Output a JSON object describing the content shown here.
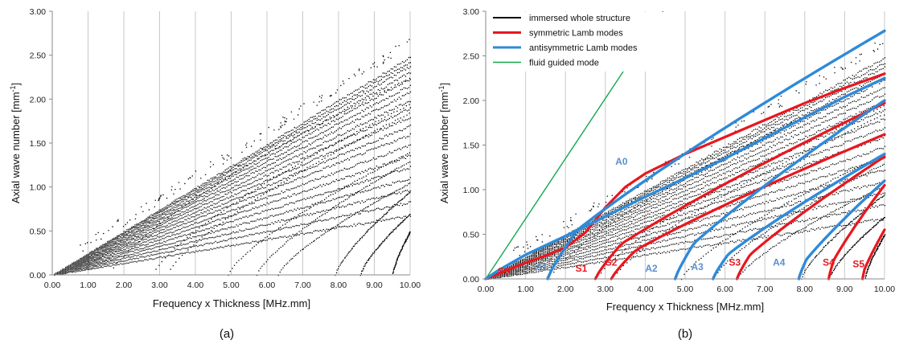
{
  "chart_data": [
    {
      "type": "scatter",
      "caption": "(a)",
      "xlabel": "Frequency x Thickness [MHz.mm]",
      "ylabel_main": "Axial wave number [mm",
      "ylabel_sup": "-1",
      "ylabel_end": "]",
      "xlim": [
        0,
        10
      ],
      "ylim": [
        0,
        3
      ],
      "xticks": [
        "0.00",
        "1.00",
        "2.00",
        "3.00",
        "4.00",
        "5.00",
        "6.00",
        "7.00",
        "8.00",
        "9.00",
        "10.00"
      ],
      "yticks": [
        "0.00",
        "0.50",
        "1.00",
        "1.50",
        "2.00",
        "2.50",
        "3.00"
      ],
      "grid": "vertical",
      "series": [
        {
          "marker_color": "#000000",
          "fan_branches": [
            {
              "start": 0,
              "end_y": 2.48
            },
            {
              "start": 0,
              "end_y": 2.43
            },
            {
              "start": 0,
              "end_y": 2.38
            },
            {
              "start": 0,
              "end_y": 2.31
            },
            {
              "start": 0,
              "end_y": 2.24
            },
            {
              "start": 0,
              "end_y": 2.16
            },
            {
              "start": 0,
              "end_y": 2.08
            },
            {
              "start": 0,
              "end_y": 1.99
            },
            {
              "start": 0,
              "end_y": 1.9
            },
            {
              "start": 0,
              "end_y": 1.8
            },
            {
              "start": 0,
              "end_y": 1.7
            },
            {
              "start": 0,
              "end_y": 1.6
            },
            {
              "start": 0,
              "end_y": 1.48
            },
            {
              "start": 0,
              "end_y": 1.36
            },
            {
              "start": 0,
              "end_y": 1.23
            },
            {
              "start": 0,
              "end_y": 1.1
            },
            {
              "start": 0,
              "end_y": 0.97
            },
            {
              "start": 0,
              "end_y": 0.83
            },
            {
              "start": 0,
              "end_y": 0.68
            }
          ],
          "cutoff_branches": [
            {
              "fc": 1.6,
              "end_y": 2.25
            },
            {
              "fc": 2.8,
              "end_y": 1.95
            },
            {
              "fc": 3.2,
              "end_y": 1.85
            },
            {
              "fc": 4.9,
              "end_y": 1.4
            },
            {
              "fc": 5.7,
              "end_y": 1.3
            },
            {
              "fc": 6.3,
              "end_y": 1.05
            },
            {
              "fc": 7.9,
              "end_y": 0.95
            },
            {
              "fc": 8.6,
              "end_y": 0.7
            },
            {
              "fc": 9.5,
              "end_y": 0.5
            }
          ]
        }
      ]
    },
    {
      "type": "scatter",
      "caption": "(b)",
      "xlabel": "Frequency x Thickness [MHz.mm]",
      "ylabel_main": "Axial wave number [mm",
      "ylabel_sup": "-1",
      "ylabel_end": "]",
      "xlim": [
        0,
        10
      ],
      "ylim": [
        0,
        3
      ],
      "xticks": [
        "0.00",
        "1.00",
        "2.00",
        "3.00",
        "4.00",
        "5.00",
        "6.00",
        "7.00",
        "8.00",
        "9.00",
        "10.00"
      ],
      "yticks": [
        "0.00",
        "0.50",
        "1.00",
        "1.50",
        "2.00",
        "2.50",
        "3.00"
      ],
      "grid": "vertical",
      "legend_position": "top-left",
      "legend": [
        {
          "label": "immersed whole structure",
          "color": "#000000"
        },
        {
          "label": "symmetric Lamb modes",
          "color": "#e8171f"
        },
        {
          "label": "antisymmetric Lamb modes",
          "color": "#2f8ad8"
        },
        {
          "label": "fluid guided mode",
          "color": "#12a84a"
        }
      ],
      "fluid_mode": {
        "x": [
          0,
          4.45
        ],
        "y": [
          0,
          3.0
        ]
      },
      "symmetric_modes": [
        {
          "name": "S0",
          "x": [
            0,
            0.5,
            1.0,
            1.5,
            2.0,
            2.5,
            3.0,
            3.5,
            4.0,
            5.0,
            6.0,
            7.0,
            8.0,
            9.0,
            10.0
          ],
          "y": [
            0,
            0.09,
            0.18,
            0.26,
            0.35,
            0.52,
            0.8,
            1.03,
            1.18,
            1.4,
            1.59,
            1.78,
            1.97,
            2.14,
            2.3
          ]
        },
        {
          "name": "S1",
          "fc": 2.75,
          "y_end": 1.97
        },
        {
          "name": "S2",
          "fc": 3.15,
          "y_end": 1.62
        },
        {
          "name": "S3",
          "fc": 6.3,
          "y_end": 1.37
        },
        {
          "name": "S4",
          "fc": 8.6,
          "y_end": 1.05
        },
        {
          "name": "S5",
          "fc": 9.45,
          "y_end": 0.55
        }
      ],
      "antisymmetric_modes": [
        {
          "name": "A0",
          "x": [
            0,
            0.3,
            1.0,
            2.0,
            3.0,
            4.0,
            5.0,
            6.0,
            7.0,
            8.0,
            9.0,
            10.0
          ],
          "y": [
            0,
            0.09,
            0.27,
            0.48,
            0.7,
            0.92,
            1.13,
            1.35,
            1.58,
            1.81,
            2.04,
            2.25
          ]
        },
        {
          "name": "A1",
          "fc": 1.55,
          "y_end": 2.78
        },
        {
          "name": "A2",
          "fc": 4.75,
          "y_end": 2.0
        },
        {
          "name": "A3",
          "fc": 5.7,
          "y_end": 1.4
        },
        {
          "name": "A4",
          "fc": 7.85,
          "y_end": 1.1
        }
      ],
      "mode_labels": [
        {
          "text": "A0",
          "x": 3.25,
          "y": 1.28,
          "color": "#5a8fd0"
        },
        {
          "text": "S0",
          "x": 0.3,
          "y": 0.05,
          "color": "#e8171f"
        },
        {
          "text": "A1",
          "x": 1.25,
          "y": 0.1,
          "color": "#5a8fd0"
        },
        {
          "text": "S1",
          "x": 2.25,
          "y": 0.08,
          "color": "#e8171f"
        },
        {
          "text": "S2",
          "x": 3.0,
          "y": 0.15,
          "color": "#e8171f"
        },
        {
          "text": "A2",
          "x": 4.0,
          "y": 0.08,
          "color": "#5a8fd0"
        },
        {
          "text": "A3",
          "x": 5.15,
          "y": 0.1,
          "color": "#5a8fd0"
        },
        {
          "text": "S3",
          "x": 6.1,
          "y": 0.15,
          "color": "#e8171f"
        },
        {
          "text": "A4",
          "x": 7.2,
          "y": 0.15,
          "color": "#5a8fd0"
        },
        {
          "text": "S4",
          "x": 8.45,
          "y": 0.15,
          "color": "#e8171f"
        },
        {
          "text": "S5",
          "x": 9.2,
          "y": 0.13,
          "color": "#e8171f"
        }
      ]
    }
  ]
}
